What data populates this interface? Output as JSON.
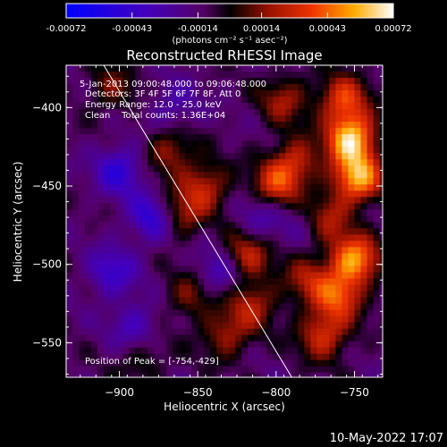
{
  "chart_data": {
    "type": "heatmap",
    "title": "Reconstructed RHESSI Image",
    "xlabel": "Heliocentric X (arcsec)",
    "ylabel": "Heliocentric Y (arcsec)",
    "xlim": [
      -934,
      -732
    ],
    "ylim": [
      -572,
      -373
    ],
    "x_ticks": [
      -900,
      -850,
      -800,
      -750
    ],
    "y_ticks": [
      -400,
      -450,
      -500,
      -550
    ],
    "colorbar": {
      "min": -0.00072,
      "max": 0.00072,
      "ticks": [
        -0.00072,
        -0.00043,
        -0.00014,
        0.00014,
        0.00043,
        0.00072
      ],
      "tick_labels": [
        "-0.00072",
        "-0.00043",
        "-0.00014",
        "0.00014",
        "0.00043",
        "0.00072"
      ],
      "units_label": "(photons cm⁻² s⁻¹ asec⁻²)"
    },
    "annotations": [
      "5-Jan-2013 09:00:48.000 to 09:06:48.000",
      "Detectors: 3F 4F 5F 6F 7F 8F, Att 0",
      "Energy Range: 12.0 - 25.0 keV",
      "Clean    Total counts: 1.36E+04"
    ],
    "peak_label": "Position of Peak = [-754,-429]",
    "peak_position": [
      -754,
      -429
    ],
    "limb_line": [
      [
        -910,
        -373
      ],
      [
        -790,
        -572
      ]
    ],
    "blobs": [
      {
        "x": -752,
        "y": -420,
        "v": 0.00072
      },
      {
        "x": -748,
        "y": -445,
        "v": 0.00065
      },
      {
        "x": -757,
        "y": -395,
        "v": 0.00045
      },
      {
        "x": -750,
        "y": -497,
        "v": 0.00062
      },
      {
        "x": -760,
        "y": -520,
        "v": 0.00045
      },
      {
        "x": -768,
        "y": -470,
        "v": 0.00035
      },
      {
        "x": -770,
        "y": -545,
        "v": 0.00042
      },
      {
        "x": -780,
        "y": -510,
        "v": 0.00028
      },
      {
        "x": -800,
        "y": -450,
        "v": 0.0004
      },
      {
        "x": -788,
        "y": -435,
        "v": 0.00035
      },
      {
        "x": -795,
        "y": -395,
        "v": 0.0003
      },
      {
        "x": -820,
        "y": -495,
        "v": 0.0004
      },
      {
        "x": -815,
        "y": -525,
        "v": 0.00032
      },
      {
        "x": -832,
        "y": -545,
        "v": 0.0003
      },
      {
        "x": -845,
        "y": -450,
        "v": 0.00035
      },
      {
        "x": -868,
        "y": -428,
        "v": 0.0003
      },
      {
        "x": -862,
        "y": -468,
        "v": 0.00035
      },
      {
        "x": -855,
        "y": -520,
        "v": 0.00025
      },
      {
        "x": -885,
        "y": -560,
        "v": 0.00018
      },
      {
        "x": -905,
        "y": -388,
        "v": 0.00022
      },
      {
        "x": -878,
        "y": -470,
        "v": -0.0004
      },
      {
        "x": -900,
        "y": -440,
        "v": -0.00035
      },
      {
        "x": -905,
        "y": -505,
        "v": -0.0003
      },
      {
        "x": -890,
        "y": -540,
        "v": -0.00025
      },
      {
        "x": -835,
        "y": -505,
        "v": -0.0003
      },
      {
        "x": -810,
        "y": -470,
        "v": -0.0002
      },
      {
        "x": -865,
        "y": -400,
        "v": -0.0002
      },
      {
        "x": -780,
        "y": -470,
        "v": -0.00015
      }
    ]
  },
  "timestamp": "10-May-2022 17:07"
}
